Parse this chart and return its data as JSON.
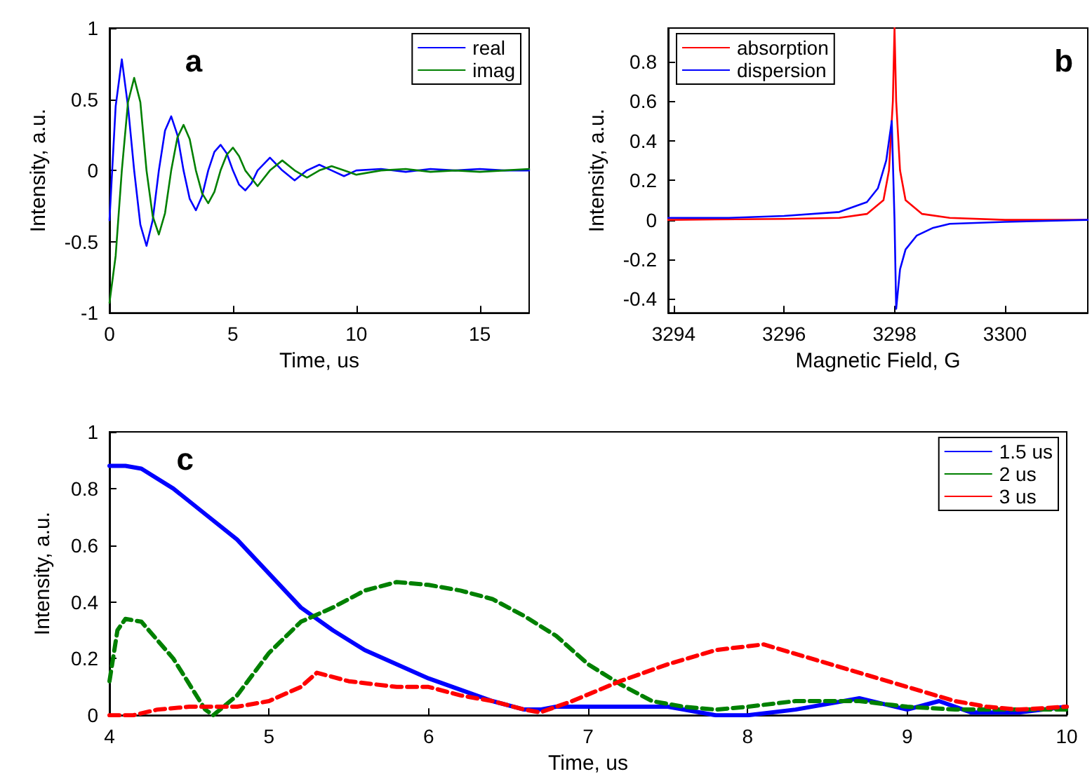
{
  "chart_data": [
    {
      "type": "line",
      "xlabel": "Time, us",
      "ylabel": "Intensity, a.u.",
      "annotations": [
        "a"
      ],
      "xlim": [
        0,
        17
      ],
      "ylim": [
        -1,
        1
      ],
      "xticks": [
        0,
        5,
        10,
        15
      ],
      "yticks": [
        -1,
        -0.5,
        0,
        0.5,
        1
      ],
      "legend": "top right",
      "grid": false,
      "line_style": "solid",
      "marker": "none",
      "series": [
        {
          "name": "real",
          "color": "#0000ff",
          "x": [
            0,
            0.25,
            0.5,
            0.75,
            1,
            1.25,
            1.5,
            1.75,
            2,
            2.25,
            2.5,
            2.75,
            3,
            3.25,
            3.5,
            3.75,
            4,
            4.25,
            4.5,
            4.75,
            5,
            5.25,
            5.5,
            5.75,
            6,
            6.5,
            7,
            7.5,
            8,
            8.5,
            9,
            9.5,
            10,
            11,
            12,
            13,
            14,
            15,
            16,
            17
          ],
          "values": [
            -0.35,
            0.45,
            0.78,
            0.45,
            0,
            -0.38,
            -0.53,
            -0.35,
            0,
            0.28,
            0.38,
            0.25,
            0,
            -0.2,
            -0.28,
            -0.18,
            0,
            0.13,
            0.18,
            0.12,
            0,
            -0.1,
            -0.14,
            -0.09,
            0,
            0.09,
            0,
            -0.07,
            0,
            0.04,
            0,
            -0.04,
            0,
            0.01,
            -0.01,
            0.01,
            0,
            0.01,
            0,
            0
          ]
        },
        {
          "name": "imag",
          "color": "#008000",
          "x": [
            0,
            0.25,
            0.5,
            0.75,
            1,
            1.25,
            1.5,
            1.75,
            2,
            2.25,
            2.5,
            2.75,
            3,
            3.25,
            3.5,
            3.75,
            4,
            4.25,
            4.5,
            4.75,
            5,
            5.25,
            5.5,
            6,
            6.5,
            7,
            7.5,
            8,
            8.5,
            9,
            9.5,
            10,
            11,
            12,
            13,
            14,
            15,
            16,
            17
          ],
          "values": [
            -0.93,
            -0.6,
            0,
            0.48,
            0.65,
            0.48,
            0,
            -0.32,
            -0.45,
            -0.3,
            0,
            0.23,
            0.32,
            0.22,
            0,
            -0.16,
            -0.23,
            -0.15,
            0,
            0.11,
            0.16,
            0.1,
            0,
            -0.11,
            0,
            0.07,
            0,
            -0.05,
            0,
            0.03,
            0,
            -0.03,
            0,
            0.01,
            -0.01,
            0,
            -0.01,
            0,
            0.01
          ]
        }
      ]
    },
    {
      "type": "line",
      "xlabel": "Magnetic Field, G",
      "ylabel": "Intensity, a.u.",
      "annotations": [
        "b"
      ],
      "xlim": [
        3293.9,
        3301.5
      ],
      "ylim": [
        -0.47,
        0.97
      ],
      "xticks": [
        3294,
        3296,
        3298,
        3300
      ],
      "yticks": [
        -0.4,
        -0.2,
        0,
        0.2,
        0.4,
        0.6,
        0.8
      ],
      "legend": "top left",
      "grid": false,
      "line_style": "solid",
      "marker": "none",
      "series": [
        {
          "name": "absorption",
          "color": "#ff0000",
          "x": [
            3293.9,
            3296,
            3297,
            3297.5,
            3297.8,
            3297.9,
            3297.97,
            3298,
            3298.03,
            3298.1,
            3298.2,
            3298.5,
            3299,
            3300,
            3301.5
          ],
          "values": [
            0,
            0.005,
            0.01,
            0.03,
            0.1,
            0.25,
            0.6,
            0.97,
            0.6,
            0.25,
            0.1,
            0.03,
            0.01,
            0,
            0
          ]
        },
        {
          "name": "dispersion",
          "color": "#0000ff",
          "x": [
            3293.9,
            3295,
            3296,
            3297,
            3297.5,
            3297.7,
            3297.85,
            3297.95,
            3298,
            3298.03,
            3298.1,
            3298.2,
            3298.4,
            3298.7,
            3299,
            3300,
            3301.5
          ],
          "values": [
            0.01,
            0.01,
            0.02,
            0.04,
            0.09,
            0.16,
            0.3,
            0.5,
            0,
            -0.45,
            -0.25,
            -0.15,
            -0.08,
            -0.04,
            -0.02,
            -0.01,
            0
          ]
        }
      ]
    },
    {
      "type": "line",
      "xlabel": "Time, us",
      "ylabel": "Intensity, a.u.",
      "annotations": [
        "c"
      ],
      "xlim": [
        4,
        10
      ],
      "ylim": [
        0,
        1
      ],
      "xticks": [
        4,
        5,
        6,
        7,
        8,
        9,
        10
      ],
      "yticks": [
        0,
        0.2,
        0.4,
        0.6,
        0.8,
        1
      ],
      "legend": "top right",
      "grid": false,
      "marker": "none",
      "series": [
        {
          "name": "1.5 us",
          "color": "#0000ff",
          "line_style": "solid",
          "x": [
            4,
            4.1,
            4.2,
            4.4,
            4.6,
            4.8,
            5,
            5.2,
            5.4,
            5.6,
            5.8,
            6,
            6.2,
            6.4,
            6.6,
            6.7,
            6.8,
            7,
            7.5,
            7.8,
            8,
            8.3,
            8.7,
            9,
            9.2,
            9.4,
            9.7,
            10
          ],
          "values": [
            0.88,
            0.88,
            0.87,
            0.8,
            0.71,
            0.62,
            0.5,
            0.38,
            0.3,
            0.23,
            0.18,
            0.13,
            0.09,
            0.05,
            0.02,
            0.02,
            0.03,
            0.03,
            0.03,
            0,
            0,
            0.02,
            0.06,
            0.02,
            0.05,
            0.01,
            0.01,
            0.03
          ]
        },
        {
          "name": "2 us",
          "color": "#008000",
          "line_style": "dashed",
          "x": [
            4,
            4.05,
            4.1,
            4.2,
            4.4,
            4.6,
            4.65,
            4.8,
            5,
            5.2,
            5.4,
            5.6,
            5.8,
            6,
            6.2,
            6.4,
            6.6,
            6.8,
            7,
            7.2,
            7.4,
            7.6,
            7.8,
            8,
            8.3,
            8.7,
            9,
            9.3,
            9.6,
            10
          ],
          "values": [
            0.12,
            0.3,
            0.34,
            0.33,
            0.2,
            0.02,
            0,
            0.07,
            0.22,
            0.33,
            0.38,
            0.44,
            0.47,
            0.46,
            0.44,
            0.41,
            0.35,
            0.28,
            0.18,
            0.11,
            0.05,
            0.03,
            0.02,
            0.03,
            0.05,
            0.05,
            0.03,
            0.02,
            0.02,
            0.02
          ]
        },
        {
          "name": "3 us",
          "color": "#ff0000",
          "line_style": "dashed",
          "x": [
            4,
            4.15,
            4.3,
            4.5,
            4.8,
            5,
            5.2,
            5.3,
            5.5,
            5.8,
            6,
            6.2,
            6.4,
            6.6,
            6.7,
            6.9,
            7.2,
            7.5,
            7.8,
            8.1,
            8.4,
            8.7,
            9,
            9.3,
            9.5,
            9.7,
            10
          ],
          "values": [
            0,
            0,
            0.02,
            0.03,
            0.03,
            0.05,
            0.1,
            0.15,
            0.12,
            0.1,
            0.1,
            0.07,
            0.05,
            0.02,
            0.01,
            0.05,
            0.12,
            0.18,
            0.23,
            0.25,
            0.2,
            0.15,
            0.1,
            0.05,
            0.03,
            0.02,
            0.03
          ]
        }
      ]
    }
  ]
}
